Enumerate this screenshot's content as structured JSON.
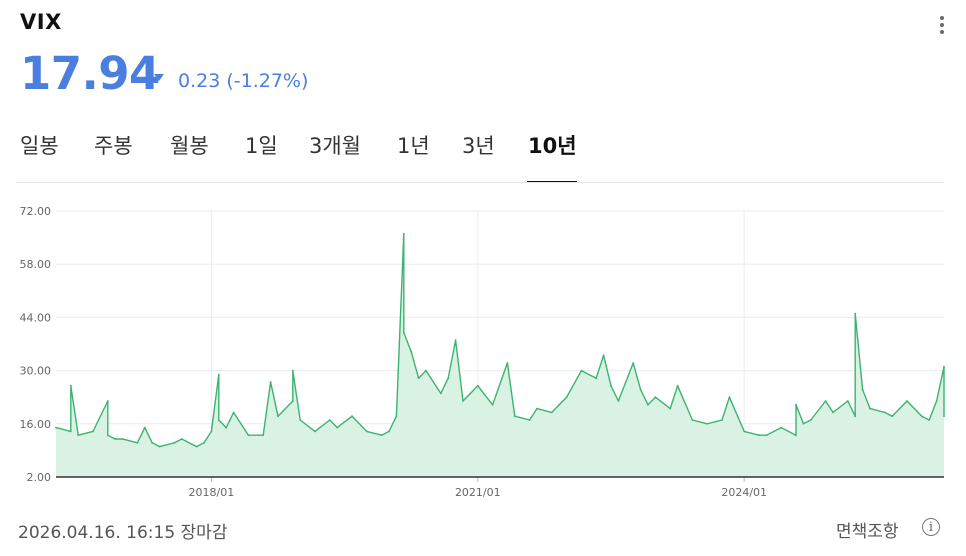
{
  "header": {
    "title": "VIX",
    "price": "17.94",
    "change": "0.23 (-1.27%)",
    "direction": "down",
    "price_color": "#4a7fe0"
  },
  "tabs": [
    {
      "label": "일봉",
      "active": false
    },
    {
      "label": "주봉",
      "active": false
    },
    {
      "label": "월봉",
      "active": false
    },
    {
      "label": "1일",
      "active": false
    },
    {
      "label": "3개월",
      "active": false
    },
    {
      "label": "1년",
      "active": false
    },
    {
      "label": "3년",
      "active": false
    },
    {
      "label": "10년",
      "active": true
    }
  ],
  "footer": {
    "timestamp": "2026.04.16. 16:15 장마감",
    "disclaimer": "면책조항",
    "info_icon": "i"
  },
  "chart_data": {
    "type": "area",
    "title": "",
    "xlabel": "",
    "ylabel": "",
    "ylim": [
      2,
      72
    ],
    "yticks": [
      "72.00",
      "58.00",
      "44.00",
      "30.00",
      "16.00",
      "2.00"
    ],
    "xticks": [
      "2018/01",
      "2021/01",
      "2024/01"
    ],
    "xlim": [
      "2016/04",
      "2026/04"
    ],
    "grid": true,
    "line_color": "#3cb371",
    "fill_color": "#d9f2e3",
    "series": [
      {
        "x": [
          "2016/04",
          "2016/06",
          "2016/06",
          "2016/07",
          "2016/09",
          "2016/11",
          "2016/11",
          "2016/12",
          "2017/01",
          "2017/03",
          "2017/04",
          "2017/05",
          "2017/06",
          "2017/08",
          "2017/09",
          "2017/11",
          "2017/12",
          "2018/01",
          "2018/02",
          "2018/02",
          "2018/03",
          "2018/04",
          "2018/06",
          "2018/08",
          "2018/09",
          "2018/10",
          "2018/12",
          "2018/12",
          "2019/01",
          "2019/03",
          "2019/05",
          "2019/06",
          "2019/08",
          "2019/10",
          "2019/12",
          "2020/01",
          "2020/02",
          "2020/03",
          "2020/03",
          "2020/04",
          "2020/05",
          "2020/06",
          "2020/08",
          "2020/09",
          "2020/10",
          "2020/11",
          "2020/12",
          "2021/01",
          "2021/03",
          "2021/05",
          "2021/06",
          "2021/08",
          "2021/09",
          "2021/11",
          "2021/12",
          "2022/01",
          "2022/03",
          "2022/05",
          "2022/06",
          "2022/07",
          "2022/08",
          "2022/10",
          "2022/11",
          "2022/12",
          "2023/01",
          "2023/03",
          "2023/04",
          "2023/06",
          "2023/08",
          "2023/10",
          "2023/11",
          "2024/01",
          "2024/03",
          "2024/04",
          "2024/06",
          "2024/08",
          "2024/08",
          "2024/09",
          "2024/10",
          "2024/12",
          "2025/01",
          "2025/03",
          "2025/04",
          "2025/04",
          "2025/05",
          "2025/06",
          "2025/08",
          "2025/09",
          "2025/11",
          "2026/01",
          "2026/02",
          "2026/03",
          "2026/04",
          "2026/04"
        ],
        "values": [
          15,
          14,
          26,
          13,
          14,
          22,
          13,
          12,
          12,
          11,
          15,
          11,
          10,
          11,
          12,
          10,
          11,
          14,
          29,
          17,
          15,
          19,
          13,
          13,
          27,
          18,
          22,
          30,
          17,
          14,
          17,
          15,
          18,
          14,
          13,
          14,
          18,
          66,
          40,
          35,
          28,
          30,
          24,
          28,
          38,
          22,
          24,
          26,
          21,
          32,
          18,
          17,
          20,
          19,
          21,
          23,
          30,
          28,
          34,
          26,
          22,
          32,
          25,
          21,
          23,
          20,
          26,
          17,
          16,
          17,
          23,
          14,
          13,
          13,
          15,
          13,
          21,
          16,
          17,
          22,
          19,
          22,
          18,
          45,
          25,
          20,
          19,
          18,
          22,
          18,
          17,
          22,
          31,
          18
        ]
      }
    ]
  }
}
